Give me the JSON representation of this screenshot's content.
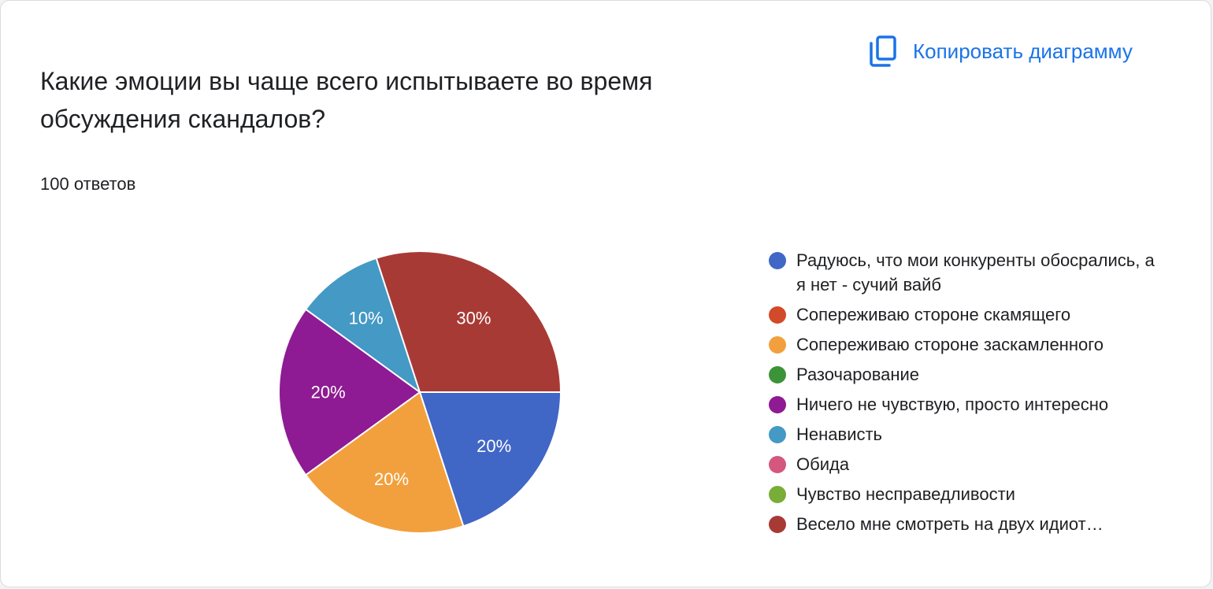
{
  "question": {
    "title": "Какие эмоции вы чаще всего испытываете во время обсуждения скандалов?",
    "responses": "100 ответов"
  },
  "toolbar": {
    "copy_label": "Копировать диаграмму",
    "copy_icon": "copy-icon",
    "accent": "#1a73e8"
  },
  "chart_data": {
    "type": "pie",
    "slices": [
      {
        "label": "Радуюсь, что мои конкуренты обосрались, а я нет - сучий вайб",
        "value": 20,
        "color": "#4066c6"
      },
      {
        "label": "Сопереживаю стороне скамящего",
        "value": 0,
        "color": "#d24a2a"
      },
      {
        "label": "Сопереживаю стороне заскамленного",
        "value": 20,
        "color": "#f2a03d"
      },
      {
        "label": "Разочарование",
        "value": 0,
        "color": "#3c9438"
      },
      {
        "label": "Ничего не чувствую, просто интересно",
        "value": 20,
        "color": "#8e1b93"
      },
      {
        "label": "Ненависть",
        "value": 10,
        "color": "#4499c5"
      },
      {
        "label": "Обида",
        "value": 0,
        "color": "#d4587e"
      },
      {
        "label": "Чувство несправедливости",
        "value": 0,
        "color": "#78ad37"
      },
      {
        "label": "Весело мне смотреть на двух идиот…",
        "value": 30,
        "color": "#a83a36"
      }
    ],
    "data_labels": [
      "20%",
      "",
      "20%",
      "",
      "20%",
      "10%",
      "",
      "",
      "30%"
    ],
    "label_color": "#ffffff",
    "legend_position": "right"
  }
}
